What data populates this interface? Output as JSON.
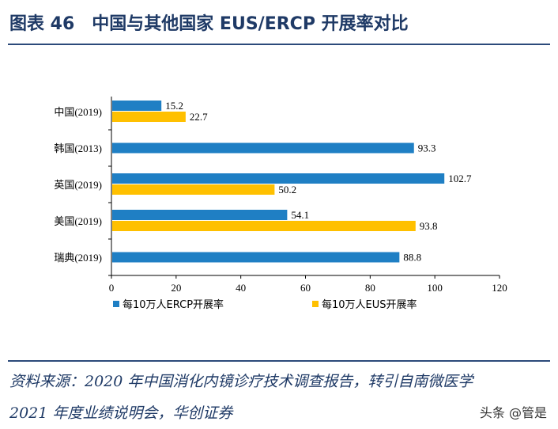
{
  "chart_data": {
    "type": "bar",
    "orientation": "horizontal",
    "title": "图表 46　中国与其他国家 EUS/ERCP 开展率对比",
    "categories": [
      "中国(2019)",
      "韩国(2013)",
      "英国(2019)",
      "美国(2019)",
      "瑞典(2019)"
    ],
    "series": [
      {
        "name": "每10万人ERCP开展率",
        "color": "#1f7fc4",
        "values": [
          15.2,
          93.3,
          102.7,
          54.1,
          88.8
        ]
      },
      {
        "name": "每10万人EUS开展率",
        "color": "#ffc000",
        "values": [
          22.7,
          null,
          50.2,
          93.8,
          null
        ]
      }
    ],
    "x_ticks": [
      0,
      20,
      40,
      60,
      80,
      100,
      120
    ],
    "xlim": [
      0,
      120
    ],
    "legend": "bottom",
    "xlabel": "",
    "ylabel": ""
  },
  "header": {
    "title": "图表 46　中国与其他国家 EUS/ERCP 开展率对比"
  },
  "footer": {
    "source": "资料来源：2020 年中国消化内镜诊疗技术调查报告，转引自南微医学 2021 年度业绩说明会，华创证券",
    "watermark": "头条 @管是"
  }
}
